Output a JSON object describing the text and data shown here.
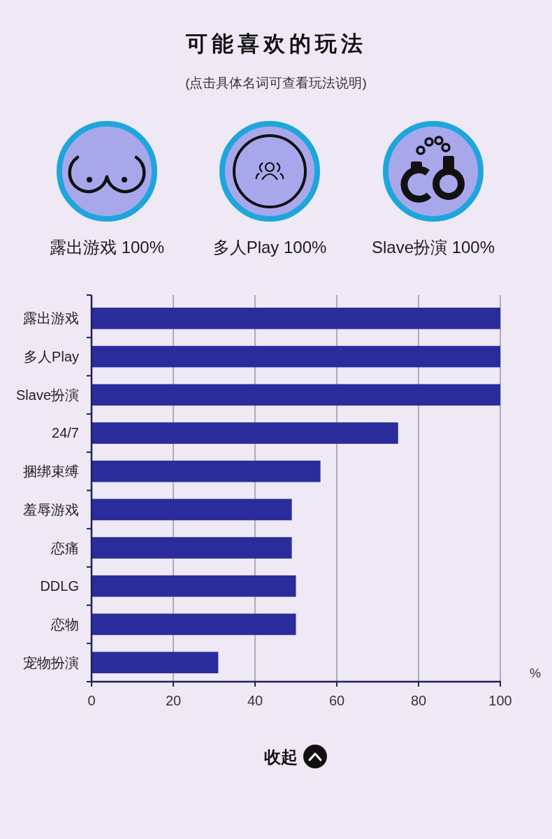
{
  "chart_data": {
    "type": "bar",
    "orientation": "horizontal",
    "title": "可能喜欢的玩法",
    "subtitle": "(点击具体名词可查看玩法说明)",
    "xlabel": "%",
    "categories": [
      "露出游戏",
      "多人Play",
      "Slave扮演",
      "24/7",
      "捆绑束缚",
      "羞辱游戏",
      "恋痛",
      "DDLG",
      "恋物",
      "宠物扮演"
    ],
    "values": [
      100,
      100,
      100,
      75,
      56,
      49,
      49,
      50,
      50,
      31
    ],
    "color": "#2a2c9c",
    "xlim": [
      0,
      100
    ],
    "xticks": [
      0,
      20,
      40,
      60,
      80,
      100
    ],
    "grid": "x",
    "annotations": [
      "露出游戏 100%",
      "多人Play 100%",
      "Slave扮演 100%",
      "收起"
    ]
  }
}
